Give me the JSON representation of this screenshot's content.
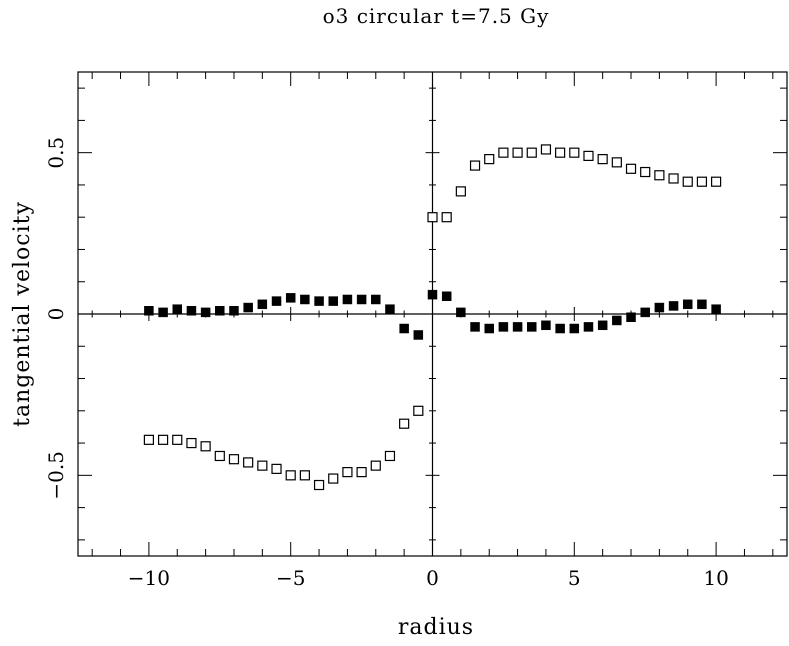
{
  "chart_data": {
    "type": "scatter",
    "title": "o3 circular t=7.5 Gy",
    "xlabel": "radius",
    "ylabel": "tangential velocity",
    "xlim": [
      -12.5,
      12.5
    ],
    "ylim": [
      -0.75,
      0.75
    ],
    "x_ticks": [
      -10,
      -5,
      0,
      5,
      10
    ],
    "x_tick_labels": [
      "−10",
      "−5",
      "0",
      "5",
      "10"
    ],
    "y_ticks": [
      -0.5,
      0,
      0.5
    ],
    "y_tick_labels": [
      "−0.5",
      "0",
      "0.5"
    ],
    "grid": false,
    "legend": "none",
    "series": [
      {
        "marker": "open-square",
        "color": "#000000",
        "x": [
          -10,
          -9.5,
          -9,
          -8.5,
          -8,
          -7.5,
          -7,
          -6.5,
          -6,
          -5.5,
          -5,
          -4.5,
          -4,
          -3.5,
          -3,
          -2.5,
          -2,
          -1.5,
          -1,
          -0.5,
          0,
          0.5,
          1,
          1.5,
          2,
          2.5,
          3,
          3.5,
          4,
          4.5,
          5,
          5.5,
          6,
          6.5,
          7,
          7.5,
          8,
          8.5,
          9,
          9.5,
          10
        ],
        "y": [
          -0.39,
          -0.39,
          -0.39,
          -0.4,
          -0.41,
          -0.44,
          -0.45,
          -0.46,
          -0.47,
          -0.48,
          -0.5,
          -0.5,
          -0.53,
          -0.51,
          -0.49,
          -0.49,
          -0.47,
          -0.44,
          -0.34,
          -0.3,
          0.3,
          0.3,
          0.38,
          0.46,
          0.48,
          0.5,
          0.5,
          0.5,
          0.51,
          0.5,
          0.5,
          0.49,
          0.48,
          0.47,
          0.45,
          0.44,
          0.43,
          0.42,
          0.41,
          0.41,
          0.41
        ]
      },
      {
        "marker": "filled-square",
        "color": "#000000",
        "x": [
          -10,
          -9.5,
          -9,
          -8.5,
          -8,
          -7.5,
          -7,
          -6.5,
          -6,
          -5.5,
          -5,
          -4.5,
          -4,
          -3.5,
          -3,
          -2.5,
          -2,
          -1.5,
          -1,
          -0.5,
          0,
          0.5,
          1,
          1.5,
          2,
          2.5,
          3,
          3.5,
          4,
          4.5,
          5,
          5.5,
          6,
          6.5,
          7,
          7.5,
          8,
          8.5,
          9,
          9.5,
          10
        ],
        "y": [
          0.01,
          0.005,
          0.015,
          0.01,
          0.005,
          0.01,
          0.01,
          0.02,
          0.03,
          0.04,
          0.05,
          0.045,
          0.04,
          0.04,
          0.045,
          0.045,
          0.045,
          0.015,
          -0.045,
          -0.065,
          0.06,
          0.055,
          0.005,
          -0.04,
          -0.045,
          -0.04,
          -0.04,
          -0.04,
          -0.035,
          -0.045,
          -0.045,
          -0.04,
          -0.035,
          -0.02,
          -0.01,
          0.005,
          0.02,
          0.025,
          0.03,
          0.03,
          0.015
        ]
      }
    ]
  }
}
